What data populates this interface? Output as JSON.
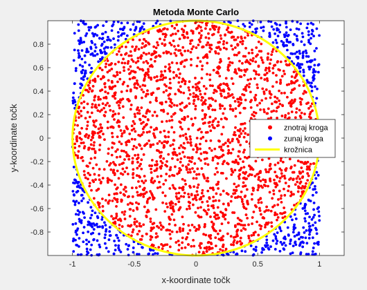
{
  "chart_data": {
    "type": "scatter",
    "title": "Metoda Monte Carlo",
    "xlabel": "x-koordinate točk",
    "ylabel": "y-koordinate točk",
    "xlim": [
      -1.2,
      1.2
    ],
    "ylim": [
      -1,
      1
    ],
    "x_ticks": [
      -1,
      -0.5,
      0,
      0.5,
      1
    ],
    "y_ticks": [
      -0.8,
      -0.6,
      -0.4,
      -0.2,
      0,
      0.2,
      0.4,
      0.6,
      0.8
    ],
    "x_tick_labels": [
      "-1",
      "-0.5",
      "0",
      "0.5",
      "1"
    ],
    "y_tick_labels": [
      "-0.8",
      "-0.6",
      "-0.4",
      "-0.2",
      "0",
      "0.2",
      "0.4",
      "0.6",
      "0.8"
    ],
    "grid": false,
    "legend_position": "right",
    "circle": {
      "center": [
        0,
        0
      ],
      "radius": 1,
      "color": "#ffff00"
    },
    "sampling_region": {
      "x": [
        -1,
        1
      ],
      "y": [
        -1,
        1
      ]
    },
    "series": [
      {
        "name": "znotraj kroga",
        "color": "#ff0000",
        "marker": "dot"
      },
      {
        "name": "zunaj kroga",
        "color": "#0000ff",
        "marker": "dot"
      },
      {
        "name": "krožnica",
        "color": "#ffff00",
        "marker": "line"
      }
    ]
  }
}
